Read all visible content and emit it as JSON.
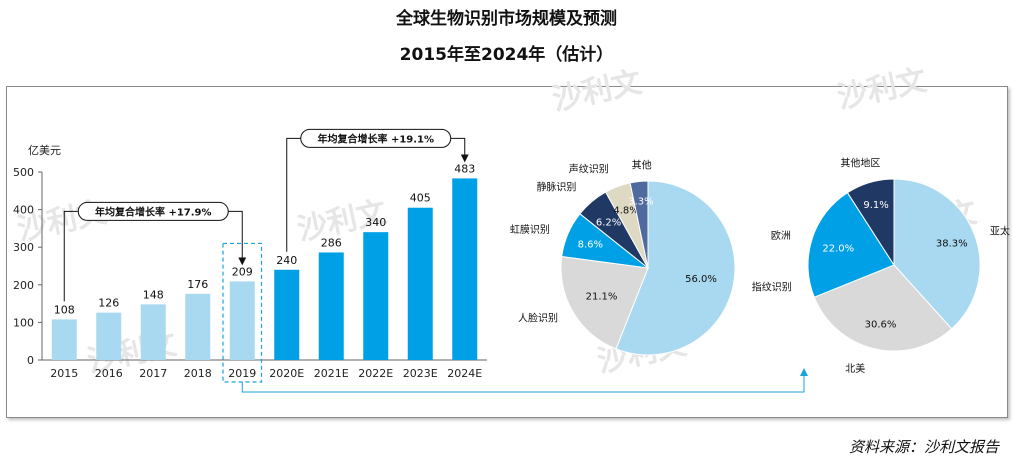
{
  "title": "全球生物识别市场规模及预测",
  "subtitle": "2015年至2024年（估计）",
  "source": "资料来源：沙利文报告",
  "watermark_text": "沙利文",
  "colors": {
    "historical": "#a9d9f0",
    "forecast": "#00a0e6",
    "axis": "#444444",
    "highlight_dash": "#1aa3dd"
  },
  "chart_data": [
    {
      "type": "bar",
      "title": "",
      "ylabel": "亿美元",
      "xlabel": "",
      "ylim": [
        0,
        500
      ],
      "yticks": [
        "0",
        "100",
        "200",
        "300",
        "400",
        "500"
      ],
      "categories": [
        "2015",
        "2016",
        "2017",
        "2018",
        "2019",
        "2020E",
        "2021E",
        "2022E",
        "2023E",
        "2024E"
      ],
      "values": [
        108,
        126,
        148,
        176,
        209,
        240,
        286,
        340,
        405,
        483
      ],
      "forecast_from_index": 5,
      "highlighted_index": 4,
      "annotations": [
        {
          "text": "年均复合增长率 +17.9%",
          "from_category": "2015",
          "to_category": "2019"
        },
        {
          "text": "年均复合增长率 +19.1%",
          "from_category": "2020E",
          "to_category": "2024E"
        }
      ],
      "grid": false
    },
    {
      "type": "pie",
      "title": "",
      "slices": [
        {
          "label": "指纹识别",
          "value": 56.0,
          "value_label": "56.0%",
          "color": "#a9d9f0"
        },
        {
          "label": "人脸识别",
          "value": 21.1,
          "value_label": "21.1%",
          "color": "#d9d9d9"
        },
        {
          "label": "虹膜识别",
          "value": 8.6,
          "value_label": "8.6%",
          "color": "#00a0e6"
        },
        {
          "label": "静脉识别",
          "value": 6.2,
          "value_label": "6.2%",
          "color": "#1f3864"
        },
        {
          "label": "声纹识别",
          "value": 4.8,
          "value_label": "4.8%",
          "color": "#ddd9c3"
        },
        {
          "label": "其他",
          "value": 3.3,
          "value_label": "3.3%",
          "color": "#4f6a9e"
        }
      ]
    },
    {
      "type": "pie",
      "title": "",
      "slices": [
        {
          "label": "亚太",
          "value": 38.3,
          "value_label": "38.3%",
          "color": "#a9d9f0"
        },
        {
          "label": "北美",
          "value": 30.6,
          "value_label": "30.6%",
          "color": "#d9d9d9"
        },
        {
          "label": "欧洲",
          "value": 22.0,
          "value_label": "22.0%",
          "color": "#00a0e6"
        },
        {
          "label": "其他地区",
          "value": 9.1,
          "value_label": "9.1%",
          "color": "#1f3864"
        }
      ]
    }
  ]
}
